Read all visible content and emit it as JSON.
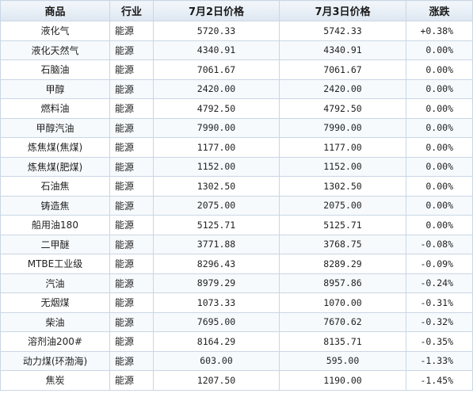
{
  "header": {
    "product": "商品",
    "industry": "行业",
    "price_day1": "7月2日价格",
    "price_day2": "7月3日价格",
    "change": "涨跌"
  },
  "colors": {
    "up": "#e60000",
    "down": "#1a9a1a",
    "flat": "#222222",
    "border": "#c9d6e4"
  },
  "rows": [
    {
      "product": "液化气",
      "industry": "能源",
      "p1": "5720.33",
      "p2": "5742.33",
      "change": "+0.38%",
      "trend": "up"
    },
    {
      "product": "液化天然气",
      "industry": "能源",
      "p1": "4340.91",
      "p2": "4340.91",
      "change": "0.00%",
      "trend": "flat"
    },
    {
      "product": "石脑油",
      "industry": "能源",
      "p1": "7061.67",
      "p2": "7061.67",
      "change": "0.00%",
      "trend": "flat"
    },
    {
      "product": "甲醇",
      "industry": "能源",
      "p1": "2420.00",
      "p2": "2420.00",
      "change": "0.00%",
      "trend": "flat"
    },
    {
      "product": "燃料油",
      "industry": "能源",
      "p1": "4792.50",
      "p2": "4792.50",
      "change": "0.00%",
      "trend": "flat"
    },
    {
      "product": "甲醇汽油",
      "industry": "能源",
      "p1": "7990.00",
      "p2": "7990.00",
      "change": "0.00%",
      "trend": "flat"
    },
    {
      "product": "炼焦煤(焦煤)",
      "industry": "能源",
      "p1": "1177.00",
      "p2": "1177.00",
      "change": "0.00%",
      "trend": "flat"
    },
    {
      "product": "炼焦煤(肥煤)",
      "industry": "能源",
      "p1": "1152.00",
      "p2": "1152.00",
      "change": "0.00%",
      "trend": "flat"
    },
    {
      "product": "石油焦",
      "industry": "能源",
      "p1": "1302.50",
      "p2": "1302.50",
      "change": "0.00%",
      "trend": "flat"
    },
    {
      "product": "铸造焦",
      "industry": "能源",
      "p1": "2075.00",
      "p2": "2075.00",
      "change": "0.00%",
      "trend": "flat"
    },
    {
      "product": "船用油180",
      "industry": "能源",
      "p1": "5125.71",
      "p2": "5125.71",
      "change": "0.00%",
      "trend": "flat"
    },
    {
      "product": "二甲醚",
      "industry": "能源",
      "p1": "3771.88",
      "p2": "3768.75",
      "change": "-0.08%",
      "trend": "down"
    },
    {
      "product": "MTBE工业级",
      "industry": "能源",
      "p1": "8296.43",
      "p2": "8289.29",
      "change": "-0.09%",
      "trend": "down"
    },
    {
      "product": "汽油",
      "industry": "能源",
      "p1": "8979.29",
      "p2": "8957.86",
      "change": "-0.24%",
      "trend": "down"
    },
    {
      "product": "无烟煤",
      "industry": "能源",
      "p1": "1073.33",
      "p2": "1070.00",
      "change": "-0.31%",
      "trend": "down"
    },
    {
      "product": "柴油",
      "industry": "能源",
      "p1": "7695.00",
      "p2": "7670.62",
      "change": "-0.32%",
      "trend": "down"
    },
    {
      "product": "溶剂油200#",
      "industry": "能源",
      "p1": "8164.29",
      "p2": "8135.71",
      "change": "-0.35%",
      "trend": "down"
    },
    {
      "product": "动力煤(环渤海)",
      "industry": "能源",
      "p1": "603.00",
      "p2": "595.00",
      "change": "-1.33%",
      "trend": "down"
    },
    {
      "product": "焦炭",
      "industry": "能源",
      "p1": "1207.50",
      "p2": "1190.00",
      "change": "-1.45%",
      "trend": "down"
    }
  ]
}
